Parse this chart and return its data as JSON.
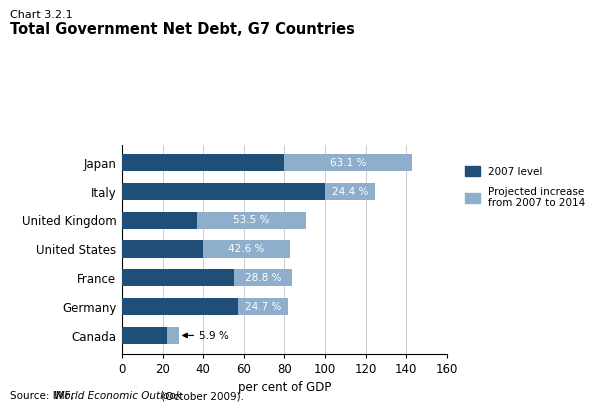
{
  "chart_label": "Chart 3.2.1",
  "title": "Total Government Net Debt, G7 Countries",
  "countries": [
    "Canada",
    "Germany",
    "France",
    "United States",
    "United Kingdom",
    "Italy",
    "Japan"
  ],
  "base_2007": [
    22.0,
    57.0,
    55.0,
    40.0,
    37.0,
    100.0,
    80.0
  ],
  "increase": [
    5.9,
    24.7,
    28.8,
    42.6,
    53.5,
    24.4,
    63.1
  ],
  "increase_labels": [
    "5.9 %",
    "24.7 %",
    "28.8 %",
    "42.6 %",
    "53.5 %",
    "24.4 %",
    "63.1 %"
  ],
  "color_base": "#1f4e79",
  "color_increase": "#8eaecb",
  "xlim": [
    0,
    160
  ],
  "xticks": [
    0,
    20,
    40,
    60,
    80,
    100,
    120,
    140,
    160
  ],
  "xlabel": "per cent of GDP",
  "legend_label_base": "2007 level",
  "legend_label_increase": "Projected increase\nfrom 2007 to 2014",
  "source_normal1": "Source: IMF, ",
  "source_italic": "World Economic Outlook",
  "source_normal2": " (October 2009).",
  "background_color": "#ffffff"
}
